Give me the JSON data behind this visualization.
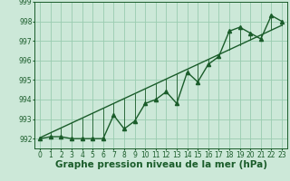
{
  "xlabel": "Graphe pression niveau de la mer (hPa)",
  "x": [
    0,
    1,
    2,
    3,
    4,
    5,
    6,
    7,
    8,
    9,
    10,
    11,
    12,
    13,
    14,
    15,
    16,
    17,
    18,
    19,
    20,
    21,
    22,
    23
  ],
  "y_actual": [
    992.0,
    992.1,
    992.1,
    992.0,
    992.0,
    992.0,
    992.0,
    993.2,
    992.5,
    992.9,
    993.8,
    994.0,
    994.4,
    993.8,
    995.4,
    994.9,
    995.8,
    996.2,
    997.5,
    997.7,
    997.4,
    997.1,
    998.3,
    998.0
  ],
  "y_trend": [
    992.05,
    992.3,
    992.55,
    992.8,
    993.05,
    993.3,
    993.55,
    993.8,
    994.05,
    994.3,
    994.55,
    994.8,
    995.05,
    995.3,
    995.55,
    995.8,
    996.05,
    996.3,
    996.55,
    996.8,
    997.05,
    997.3,
    997.55,
    997.8
  ],
  "ylim": [
    991.5,
    999.0
  ],
  "ytick_min": 992,
  "ytick_max": 999,
  "bg_color": "#cce8d8",
  "grid_color": "#99ccb0",
  "line_color": "#1a5c2a",
  "marker": "^",
  "markersize": 3,
  "linewidth": 1.0,
  "xlabel_fontsize": 7.5,
  "tick_fontsize": 5.5
}
